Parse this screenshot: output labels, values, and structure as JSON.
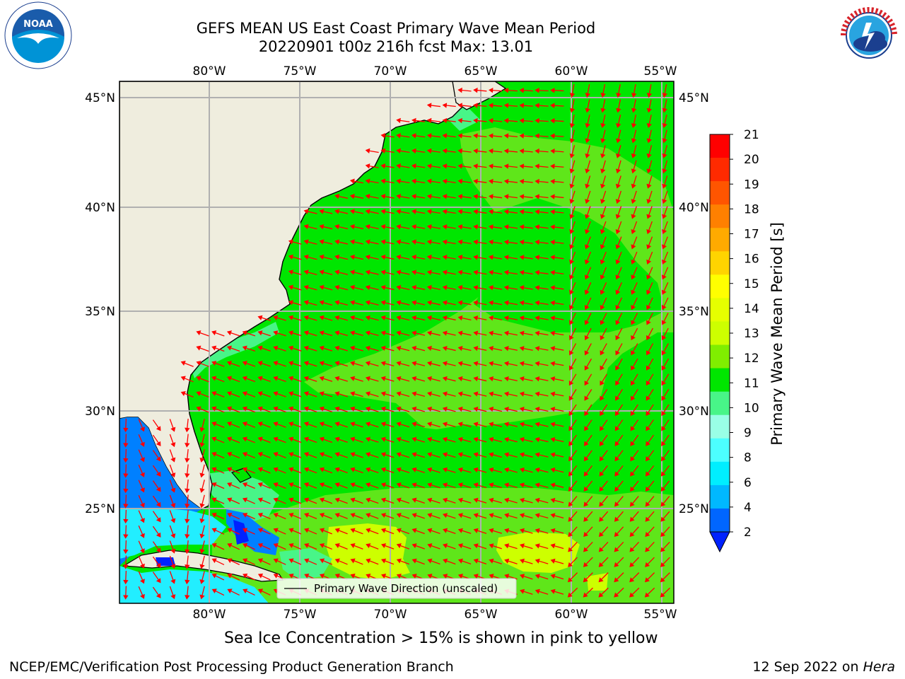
{
  "title": {
    "line1": "GEFS MEAN US East Coast Primary Wave Mean Period",
    "line2": "20220901 t00z 216h fcst   Max: 13.01"
  },
  "map": {
    "lon_labels": [
      "80°W",
      "75°W",
      "70°W",
      "65°W",
      "60°W",
      "55°W"
    ],
    "lat_labels": [
      "45°N",
      "40°N",
      "35°N",
      "30°N",
      "25°N"
    ],
    "lon_values": [
      -80,
      -75,
      -70,
      -65,
      -60,
      -55
    ],
    "lat_values": [
      45,
      40,
      35,
      30,
      25
    ],
    "lon_range": [
      -85,
      -54.3
    ],
    "lat_range": [
      20.5,
      46
    ],
    "grid": true,
    "colors": {
      "land": "#efedde",
      "ocean_10_11": "#00e600",
      "ocean_11_12": "#5fe61a",
      "ocean_12_13": "#cdff00",
      "ocean_9_10": "#48f588",
      "shallow_2_4": "#0080ff",
      "shallow_6_8": "#22eeff",
      "arrows": "#ff0000"
    }
  },
  "legend": {
    "label": "Primary Wave Direction (unscaled)"
  },
  "colorbar": {
    "label": "Primary Wave Mean Period [s]",
    "ticks": [
      "21",
      "20",
      "19",
      "18",
      "17",
      "16",
      "15",
      "14",
      "13",
      "12",
      "11",
      "10",
      "9",
      "8",
      "6",
      "4",
      "2"
    ],
    "colors": [
      "#ff0000",
      "#ff2a00",
      "#ff5500",
      "#ff8000",
      "#ffaa00",
      "#ffd400",
      "#ffff00",
      "#e6ff00",
      "#cdff00",
      "#80ee00",
      "#00e600",
      "#48f588",
      "#99ffe6",
      "#4cffff",
      "#00eeff",
      "#00b8ff",
      "#0066ff",
      "#0022ff"
    ]
  },
  "footer": {
    "subtitle": "Sea Ice Concentration > 15% is shown in pink to yellow",
    "credit": "NCEP/EMC/Verification Post Processing Product Generation Branch",
    "date": "12 Sep 2022 on ",
    "host": "Hera"
  },
  "logos": {
    "noaa": "NOAA",
    "nws": "NATIONAL WEATHER SERVICE"
  }
}
